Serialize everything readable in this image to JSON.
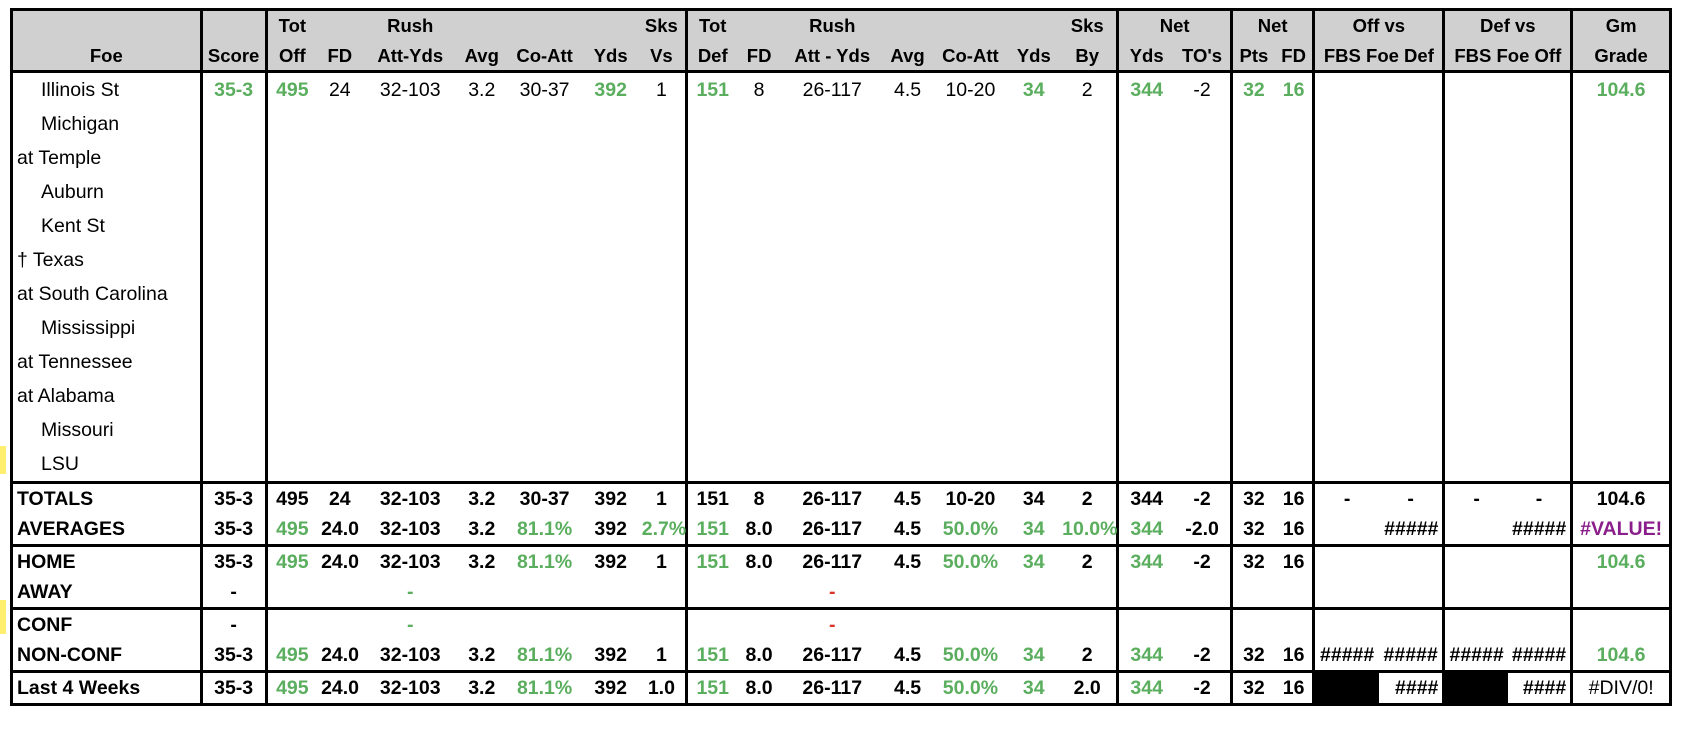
{
  "header": {
    "row1": {
      "tot_off": "Tot",
      "off_rush": "Rush",
      "sks_vs": "Sks",
      "tot_def": "Tot",
      "def_rush": "Rush",
      "sks_by": "Sks",
      "net_yds": "Net",
      "net_pts": "Net",
      "off_vs": "Off vs",
      "def_vs": "Def vs",
      "gm": "Gm"
    },
    "row2": {
      "foe": "Foe",
      "score": "Score",
      "off": "Off",
      "fd": "FD",
      "att_yds": "Att-Yds",
      "avg": "Avg",
      "co_att": "Co-Att",
      "yds": "Yds",
      "vs": "Vs",
      "def": "Def",
      "dfd": "FD",
      "datt_yds": "Att - Yds",
      "davg": "Avg",
      "dco_att": "Co-Att",
      "dyds": "Yds",
      "by": "By",
      "net_yds": "Yds",
      "tos": "TO's",
      "pts": "Pts",
      "nfd": "FD",
      "fbs_def": "FBS Foe Def",
      "fbs_off": "FBS Foe Off",
      "grade": "Grade"
    }
  },
  "games": [
    {
      "foe": "Illinois St",
      "indent": true,
      "score": "35-3",
      "tot_off": "495",
      "fd": "24",
      "rush": "32-103",
      "avg": "3.2",
      "co_att": "30-37",
      "yds": "392",
      "sks_vs": "1",
      "tot_def": "151",
      "dfd": "8",
      "drush": "26-117",
      "davg": "4.5",
      "dco_att": "10-20",
      "dyds": "34",
      "sks_by": "2",
      "net_yds": "344",
      "tos": "-2",
      "pts": "32",
      "nfd": "16",
      "grade": "104.6"
    },
    {
      "foe": "Michigan",
      "indent": true
    },
    {
      "foe": "at Temple",
      "indent": false
    },
    {
      "foe": "Auburn",
      "indent": true
    },
    {
      "foe": "Kent St",
      "indent": true
    },
    {
      "foe": "† Texas",
      "indent": false
    },
    {
      "foe": "at South Carolina",
      "indent": false
    },
    {
      "foe": "Mississippi",
      "indent": true
    },
    {
      "foe": "at Tennessee",
      "indent": false
    },
    {
      "foe": "at Alabama",
      "indent": false
    },
    {
      "foe": "Missouri",
      "indent": true
    },
    {
      "foe": "LSU",
      "indent": true
    }
  ],
  "totals": {
    "label": "TOTALS",
    "score": "35-3",
    "tot_off": "495",
    "fd": "24",
    "rush": "32-103",
    "avg": "3.2",
    "co_att": "30-37",
    "yds": "392",
    "sks_vs": "1",
    "tot_def": "151",
    "dfd": "8",
    "drush": "26-117",
    "davg": "4.5",
    "dco_att": "10-20",
    "dyds": "34",
    "sks_by": "2",
    "net_yds": "344",
    "tos": "-2",
    "pts": "32",
    "nfd": "16",
    "off_a": "-",
    "off_b": "-",
    "def_a": "-",
    "def_b": "-",
    "grade": "104.6"
  },
  "averages": {
    "label": "AVERAGES",
    "score": "35-3",
    "tot_off": "495",
    "fd": "24.0",
    "rush": "32-103",
    "avg": "3.2",
    "co_att": "81.1%",
    "yds": "392",
    "sks_vs": "2.7%",
    "tot_def": "151",
    "dfd": "8.0",
    "drush": "26-117",
    "davg": "4.5",
    "dco_att": "50.0%",
    "dyds": "34",
    "sks_by": "10.0%",
    "net_yds": "344",
    "tos": "-2.0",
    "pts": "32",
    "nfd": "16",
    "off_b": "#####",
    "def_b": "#####",
    "grade": "#VALUE!"
  },
  "home": {
    "label": "HOME",
    "score": "35-3",
    "tot_off": "495",
    "fd": "24.0",
    "rush": "32-103",
    "avg": "3.2",
    "co_att": "81.1%",
    "yds": "392",
    "sks_vs": "1",
    "tot_def": "151",
    "dfd": "8.0",
    "drush": "26-117",
    "davg": "4.5",
    "dco_att": "50.0%",
    "dyds": "34",
    "sks_by": "2",
    "net_yds": "344",
    "tos": "-2",
    "pts": "32",
    "nfd": "16",
    "grade": "104.6"
  },
  "away": {
    "label": "AWAY",
    "score": "-",
    "rush": "-",
    "drush": "-"
  },
  "conf": {
    "label": "CONF",
    "score": "-",
    "rush": "-",
    "drush": "-"
  },
  "nonconf": {
    "label": "NON-CONF",
    "score": "35-3",
    "tot_off": "495",
    "fd": "24.0",
    "rush": "32-103",
    "avg": "3.2",
    "co_att": "81.1%",
    "yds": "392",
    "sks_vs": "1",
    "tot_def": "151",
    "dfd": "8.0",
    "drush": "26-117",
    "davg": "4.5",
    "dco_att": "50.0%",
    "dyds": "34",
    "sks_by": "2",
    "net_yds": "344",
    "tos": "-2",
    "pts": "32",
    "nfd": "16",
    "off_a": "#####",
    "off_b": "#####",
    "def_a": "#####",
    "def_b": "#####",
    "grade": "104.6"
  },
  "last4": {
    "label": "Last 4 Weeks",
    "score": "35-3",
    "tot_off": "495",
    "fd": "24.0",
    "rush": "32-103",
    "avg": "3.2",
    "co_att": "81.1%",
    "yds": "392",
    "sks_vs": "1.0",
    "tot_def": "151",
    "dfd": "8.0",
    "drush": "26-117",
    "davg": "4.5",
    "dco_att": "50.0%",
    "dyds": "34",
    "sks_by": "2.0",
    "net_yds": "344",
    "tos": "-2",
    "pts": "32",
    "nfd": "16",
    "off_b": "####",
    "def_b": "####",
    "grade": "#DIV/0!"
  },
  "colors": {
    "header_bg": "#d0d0d0",
    "green": "#5aae5e",
    "red": "#d9332b",
    "purple": "#8a1e8a",
    "row_marker": "#ffef6e"
  }
}
